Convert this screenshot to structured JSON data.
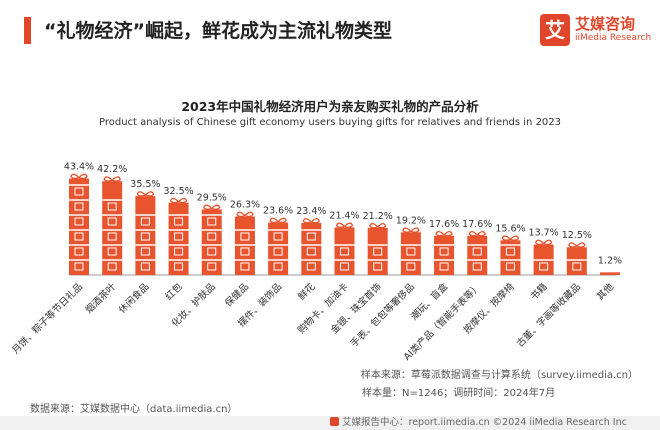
{
  "header": {
    "title": "“礼物经济”崛起，鲜花成为主流礼物类型"
  },
  "logo": {
    "glyph": "艾",
    "name_cn": "艾媒咨询",
    "name_en": "iiMedia Research"
  },
  "colors": {
    "accent": "#e2462a",
    "bar": "#e8542e"
  },
  "chart_data": {
    "type": "bar",
    "title": "2023年中国礼物经济用户为亲友购买礼物的产品分析",
    "subtitle": "Product analysis of Chinese gift economy users buying gifts for relatives and friends in 2023",
    "categories": [
      "月饼、粽子等节日礼品",
      "烟酒茶叶",
      "休闲食品",
      "红包",
      "化妆、护肤品",
      "保健品",
      "摆件、装饰品",
      "鲜花",
      "购物卡、加油卡",
      "金银、珠宝首饰",
      "手表、包包等奢侈品",
      "潮玩、盲盒",
      "AI类产品（智能手表等）",
      "按摩仪、按摩椅",
      "书籍",
      "古董、字画等收藏品",
      "其他"
    ],
    "values": [
      43.4,
      42.2,
      35.5,
      32.5,
      29.5,
      26.3,
      23.6,
      23.4,
      21.4,
      21.2,
      19.2,
      17.6,
      17.6,
      15.6,
      13.7,
      12.5,
      1.2
    ],
    "value_labels": [
      "43.4%",
      "42.2%",
      "35.5%",
      "32.5%",
      "29.5%",
      "26.3%",
      "23.6%",
      "23.4%",
      "21.4%",
      "21.2%",
      "19.2%",
      "17.6%",
      "17.6%",
      "15.6%",
      "13.7%",
      "12.5%",
      "1.2%"
    ],
    "ylim": [
      0,
      45
    ],
    "unit": "%",
    "grid": false,
    "legend": "none"
  },
  "notes": {
    "sample_source": "样本来源：草莓派数据调查与计算系统（survey.iimedia.cn）",
    "sample_info": "样本量：N=1246；调研时间：2024年7月",
    "data_source": "数据来源：艾媒数据中心（data.iimedia.cn）"
  },
  "footer": {
    "text": "艾媒报告中心：report.iimedia.cn    ©2024  iiMedia Research Inc"
  }
}
